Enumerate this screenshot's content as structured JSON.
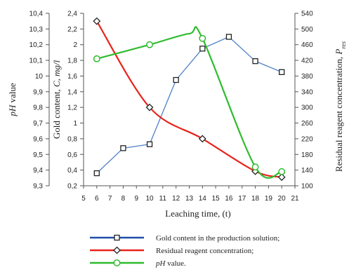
{
  "chart_data": {
    "type": "line",
    "xlabel": "Leaching  time, (t)",
    "x_ticks": [
      5,
      6,
      7,
      8,
      9,
      10,
      11,
      12,
      13,
      14,
      15,
      16,
      17,
      18,
      19,
      20,
      21
    ],
    "xlim": [
      5,
      21
    ],
    "axes": {
      "ph": {
        "label_italic": "pH",
        "label_rest": " value",
        "ticks": [
          "9,3",
          "9,4",
          "9,5",
          "9,6",
          "9,7",
          "9,8",
          "9,9",
          "10",
          "10,1",
          "10,2",
          "10,3",
          "10,4"
        ],
        "lim": [
          9.3,
          10.4
        ]
      },
      "gold": {
        "label_prefix": "Gold content, ",
        "label_italic": "C, mg/l",
        "ticks": [
          "0,2",
          "0,4",
          "0,6",
          "0,8",
          "1",
          "1,2",
          "1,4",
          "1,6",
          "1,8",
          "2",
          "2,2",
          "2,4"
        ],
        "lim": [
          0.2,
          2.4
        ]
      },
      "reagent": {
        "label_prefix": "Residual reagent concentration, ",
        "label_italic": "P",
        "label_sub": "res",
        "ticks": [
          "100",
          "140",
          "180",
          "220",
          "260",
          "300",
          "340",
          "380",
          "420",
          "460",
          "500",
          "540"
        ],
        "lim": [
          100,
          540
        ]
      }
    },
    "series": [
      {
        "name": "Gold content in the production solution;",
        "axis": "gold",
        "color": "#4f81c7",
        "legend_color": "#1f4fa8",
        "marker": "square",
        "smooth": false,
        "x": [
          6,
          8,
          10,
          12,
          14,
          16,
          18,
          20
        ],
        "y": [
          0.36,
          0.68,
          0.73,
          1.55,
          1.95,
          2.1,
          1.79,
          1.65
        ]
      },
      {
        "name": "Residual reagent concentration;",
        "axis": "reagent",
        "color": "#e8231b",
        "legend_color": "#e8231b",
        "marker": "diamond",
        "smooth": true,
        "x": [
          6,
          10,
          14,
          18,
          20
        ],
        "y": [
          520,
          300,
          220,
          137,
          122
        ]
      },
      {
        "name_italic": "pH",
        "name": " value.",
        "axis": "ph",
        "color": "#2ebc2e",
        "legend_color": "#2ebc2e",
        "marker": "circle",
        "smooth": true,
        "x": [
          6,
          10,
          13,
          14,
          18,
          20
        ],
        "y": [
          10.11,
          10.2,
          10.27,
          10.24,
          9.42,
          9.39
        ],
        "marker_x": [
          6,
          10,
          14,
          18,
          20
        ],
        "marker_y": [
          10.11,
          10.2,
          10.24,
          9.42,
          9.39
        ]
      }
    ]
  }
}
